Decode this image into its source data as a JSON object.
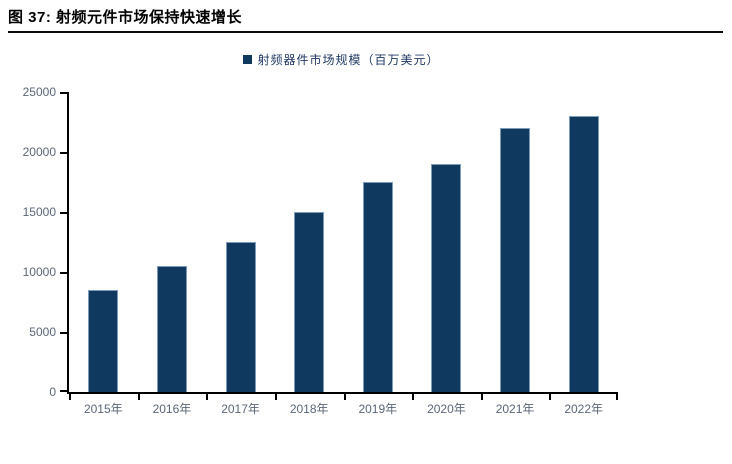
{
  "figure": {
    "title": "图 37:  射频元件市场保持快速增长"
  },
  "chart_data": {
    "type": "bar",
    "title": "图 37:  射频元件市场保持快速增长",
    "legend": [
      {
        "label": "射频器件市场规模（百万美元）"
      }
    ],
    "legend_position": "top-center",
    "categories": [
      "2015年",
      "2016年",
      "2017年",
      "2018年",
      "2019年",
      "2020年",
      "2021年",
      "2022年"
    ],
    "values": [
      8500,
      10500,
      12500,
      15000,
      17500,
      19000,
      22000,
      23000
    ],
    "xlabel": "",
    "ylabel": "",
    "ylim": [
      0,
      25000
    ],
    "ytick_interval": 5000,
    "ytick_labels": [
      "0",
      "5000",
      "10000",
      "15000",
      "20000",
      "25000"
    ],
    "grid": false,
    "colors": {
      "bar_fill": "#10395f",
      "bar_border": "#7c9dd4",
      "bar_border_color": "#7d9cba",
      "axis_line": "#000000",
      "axis_label": "#5a6679",
      "legend_text": "#1f3864",
      "title_text": "#000000"
    }
  }
}
